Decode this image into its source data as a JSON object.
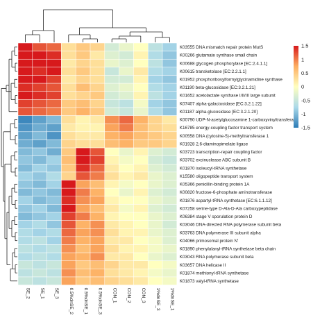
{
  "chart_data": {
    "type": "heatmap",
    "title": "",
    "columns": [
      "SE_2",
      "SE_1",
      "SE_3",
      "0.5%dnSE_2",
      "0.5%dnSE_1",
      "0.5%dnSE_3",
      "CON_1",
      "CON_2",
      "CON_3",
      "1%dnSE_3",
      "1%dnSE_1"
    ],
    "rows": [
      {
        "id": "K03555",
        "name": "DNA mismatch repair protein MutS"
      },
      {
        "id": "K00266",
        "name": "glutamate synthase small chain"
      },
      {
        "id": "K00688",
        "name": "glycogen phosphorylase [EC:2.4.1.1]"
      },
      {
        "id": "K00615",
        "name": "transketolase [EC:2.2.1.1]"
      },
      {
        "id": "K01952",
        "name": "phosphoribosylformylglycinamidine synthase"
      },
      {
        "id": "K01190",
        "name": "beta-glucosidase [EC:3.2.1.21]"
      },
      {
        "id": "K01652",
        "name": "acetolactate synthase I/II/III large subunit"
      },
      {
        "id": "K07407",
        "name": "alpha-galactosidase [EC:3.2.1.22]"
      },
      {
        "id": "K01187",
        "name": "alpha-glucosidase [EC:3.2.1.20]"
      },
      {
        "id": "K00790",
        "name": "UDP-N-acetylglucosamine 1-carboxyvinyltransferase"
      },
      {
        "id": "K16785",
        "name": "energy-coupling factor transport system"
      },
      {
        "id": "K00558",
        "name": "DNA (cytosine-5)-methyltransferase 1"
      },
      {
        "id": "K01928",
        "name": "2,6-diaminopimelate ligase"
      },
      {
        "id": "K03723",
        "name": "transcription-repair coupling factor"
      },
      {
        "id": "K03702",
        "name": "excinuclease ABC subunit B"
      },
      {
        "id": "K01870",
        "name": "isoleucyl-tRNA synthetase"
      },
      {
        "id": "K15580",
        "name": "oligopeptide transport system"
      },
      {
        "id": "K05366",
        "name": "penicillin-binding protein 1A"
      },
      {
        "id": "K00820",
        "name": "fructose-6-phosphate aminotransferase"
      },
      {
        "id": "K01876",
        "name": "aspartyl-tRNA synthetase [EC:6.1.1.12]"
      },
      {
        "id": "K07258",
        "name": "serine-type D-Ala-D-Ala carboxypeptidase"
      },
      {
        "id": "K06384",
        "name": "stage V sporulation protein D"
      },
      {
        "id": "K03046",
        "name": "DNA-directed RNA polymerase subunit beta"
      },
      {
        "id": "K03763",
        "name": "DNA polymerase III subunit alpha"
      },
      {
        "id": "K04066",
        "name": "primosomal protein N'"
      },
      {
        "id": "K01890",
        "name": "phenylalanyl-tRNA synthetase beta chain"
      },
      {
        "id": "K03043",
        "name": "RNA polymerase subunit beta"
      },
      {
        "id": "K03657",
        "name": "DNA helicase II"
      },
      {
        "id": "K01874",
        "name": "methionyl-tRNA synthetase"
      },
      {
        "id": "K01873",
        "name": "valyl-tRNA synthetase"
      }
    ],
    "values": [
      [
        1.5,
        1.2,
        1.1,
        0.3,
        0.5,
        0.4,
        -0.4,
        -0.2,
        0.0,
        -0.6,
        -0.8
      ],
      [
        1.6,
        1.5,
        1.4,
        0.3,
        0.5,
        0.2,
        -0.3,
        -0.4,
        0.1,
        -0.7,
        -0.9
      ],
      [
        1.7,
        1.6,
        1.5,
        0.2,
        0.4,
        0.3,
        -0.2,
        -0.3,
        0.0,
        -0.6,
        -0.9
      ],
      [
        1.6,
        1.4,
        1.5,
        0.3,
        0.5,
        0.3,
        -0.5,
        -0.2,
        0.2,
        -0.7,
        -0.8
      ],
      [
        1.5,
        1.5,
        1.3,
        0.2,
        0.4,
        0.3,
        -0.4,
        -0.4,
        0.1,
        -0.8,
        -0.9
      ],
      [
        1.4,
        1.3,
        1.2,
        0.3,
        0.6,
        0.4,
        -0.3,
        -0.2,
        0.0,
        -0.7,
        -0.8
      ],
      [
        1.5,
        1.4,
        1.3,
        0.3,
        0.4,
        0.5,
        -0.4,
        -0.3,
        0.1,
        -0.6,
        -0.8
      ],
      [
        1.3,
        1.2,
        1.1,
        0.5,
        0.6,
        0.4,
        -0.5,
        -0.6,
        -0.1,
        -0.8,
        -0.9
      ],
      [
        1.2,
        1.1,
        1.0,
        0.5,
        0.7,
        0.5,
        -0.4,
        -0.5,
        -0.2,
        -0.7,
        -0.9
      ],
      [
        -1.4,
        -1.2,
        -1.0,
        0.3,
        0.1,
        0.2,
        0.9,
        1.1,
        0.7,
        0.4,
        0.2
      ],
      [
        -1.3,
        -1.1,
        -1.2,
        0.2,
        0.1,
        0.1,
        0.8,
        1.0,
        0.6,
        0.4,
        0.3
      ],
      [
        -1.2,
        -1.0,
        -1.3,
        0.3,
        0.2,
        0.2,
        0.7,
        0.8,
        0.6,
        0.5,
        0.4
      ],
      [
        -1.1,
        -1.2,
        -1.0,
        0.4,
        0.3,
        0.3,
        0.6,
        0.7,
        0.5,
        0.5,
        0.4
      ],
      [
        -1.0,
        -0.9,
        -1.1,
        0.5,
        1.5,
        1.2,
        0.0,
        -0.2,
        0.1,
        -0.3,
        -0.4
      ],
      [
        -0.9,
        -1.0,
        -0.8,
        0.6,
        1.6,
        1.3,
        0.1,
        -0.1,
        0.0,
        -0.4,
        -0.5
      ],
      [
        -1.0,
        -0.8,
        -0.9,
        0.5,
        1.4,
        1.1,
        0.2,
        0.0,
        0.1,
        -0.3,
        -0.4
      ],
      [
        -0.8,
        -0.9,
        -0.7,
        0.4,
        1.2,
        1.0,
        0.3,
        0.1,
        0.2,
        -0.2,
        -0.3
      ],
      [
        -0.9,
        -1.0,
        -0.8,
        1.5,
        0.8,
        0.6,
        0.1,
        -0.1,
        0.0,
        -0.2,
        -0.3
      ],
      [
        -1.0,
        -0.9,
        -1.0,
        1.6,
        1.0,
        0.7,
        0.0,
        -0.2,
        0.1,
        -0.3,
        -0.4
      ],
      [
        -0.8,
        -1.0,
        -0.9,
        1.4,
        0.9,
        0.8,
        0.1,
        0.0,
        0.0,
        -0.2,
        -0.3
      ],
      [
        -0.9,
        -0.8,
        -1.0,
        1.5,
        0.8,
        0.6,
        0.2,
        -0.1,
        0.1,
        -0.3,
        -0.4
      ],
      [
        -1.0,
        -0.9,
        -0.8,
        1.3,
        1.0,
        0.7,
        0.1,
        0.0,
        0.0,
        -0.2,
        -0.3
      ],
      [
        -0.8,
        -0.7,
        -0.9,
        1.2,
        0.7,
        0.9,
        0.2,
        0.1,
        0.0,
        -0.2,
        -0.4
      ],
      [
        -0.7,
        -0.8,
        -0.7,
        1.1,
        0.8,
        0.9,
        0.3,
        0.1,
        0.1,
        -0.2,
        -0.3
      ],
      [
        -0.7,
        -0.6,
        -0.8,
        1.0,
        0.7,
        0.8,
        0.2,
        0.2,
        0.0,
        -0.1,
        -0.3
      ],
      [
        -0.6,
        -0.7,
        -0.6,
        0.9,
        0.6,
        0.8,
        0.3,
        0.1,
        0.1,
        -0.1,
        -0.2
      ],
      [
        -0.7,
        -0.6,
        -0.7,
        0.8,
        0.7,
        0.9,
        0.2,
        0.2,
        0.0,
        -0.2,
        -0.3
      ],
      [
        -0.5,
        -0.6,
        -0.5,
        0.8,
        0.5,
        0.6,
        0.4,
        0.2,
        0.2,
        0.0,
        -0.1
      ],
      [
        -0.6,
        -0.5,
        -0.6,
        0.9,
        0.6,
        0.7,
        0.3,
        0.2,
        0.1,
        -0.1,
        -0.2
      ],
      [
        -0.5,
        -0.6,
        -0.5,
        0.8,
        0.5,
        0.6,
        0.4,
        0.3,
        0.2,
        0.0,
        -0.1
      ]
    ],
    "color_scale": {
      "min": -1.5,
      "max": 1.5,
      "ticks": [
        1.5,
        1,
        0.5,
        0,
        -0.5,
        -1,
        -1.5
      ],
      "colors": [
        "#2c7bb6",
        "#abd9e9",
        "#ffffbf",
        "#fdae61",
        "#d7191c"
      ]
    },
    "row_dendrogram": true,
    "column_dendrogram": true
  }
}
